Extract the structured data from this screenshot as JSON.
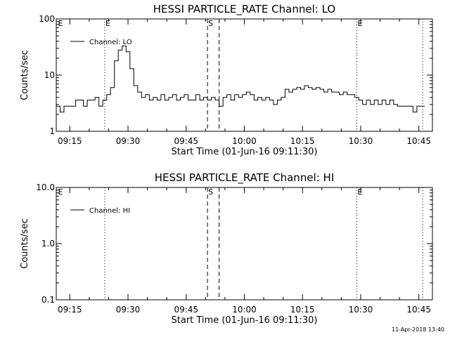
{
  "stamp": "11-Apr-2018 13:40",
  "chart_data": [
    {
      "type": "line",
      "title": "HESSI PARTICLE_RATE Channel: LO",
      "xlabel": "Start Time (01-Jun-16 09:11:30)",
      "ylabel": "Counts/sec",
      "yscale": "log",
      "xlim": [
        0,
        97
      ],
      "ylim": [
        1,
        100
      ],
      "yticks": [
        1,
        10,
        100
      ],
      "ytick_labels": [
        "1",
        "10",
        "100"
      ],
      "xticks": [
        3.5,
        18.5,
        33.5,
        48.5,
        63.5,
        78.5,
        93.5
      ],
      "xtick_labels": [
        "09:15",
        "09:30",
        "09:45",
        "10:00",
        "10:15",
        "10:30",
        "10:45"
      ],
      "x_unit": "minutes since start time",
      "legend": "top-left",
      "series": [
        {
          "name": "Channel: LO",
          "x": [
            0,
            1,
            2,
            3,
            4,
            5,
            6,
            7,
            8,
            9,
            10,
            11,
            12,
            13,
            14,
            15,
            16,
            17,
            18,
            19,
            20,
            21,
            22,
            23,
            24,
            25,
            26,
            27,
            28,
            29,
            30,
            31,
            32,
            33,
            34,
            35,
            36,
            37,
            38,
            39,
            40,
            41,
            42,
            43,
            44,
            45,
            46,
            47,
            48,
            49,
            50,
            51,
            52,
            53,
            54,
            55,
            56,
            57,
            58,
            59,
            60,
            61,
            62,
            63,
            64,
            65,
            66,
            67,
            68,
            69,
            70,
            71,
            72,
            73,
            74,
            75,
            76,
            77,
            78,
            79,
            80,
            81,
            82,
            83,
            84,
            85,
            86,
            87,
            88,
            89,
            90,
            91,
            92,
            93,
            94
          ],
          "y": [
            2.8,
            2.2,
            2.8,
            2.8,
            2.8,
            3.6,
            3.6,
            2.8,
            3.6,
            3.6,
            4.0,
            2.8,
            3.6,
            4.5,
            6.0,
            18.0,
            28.0,
            33.0,
            26.0,
            13.0,
            6.5,
            5.0,
            4.0,
            4.5,
            3.6,
            4.0,
            3.6,
            4.5,
            3.6,
            4.0,
            4.5,
            3.6,
            4.0,
            4.5,
            3.6,
            3.6,
            4.5,
            3.6,
            4.0,
            3.6,
            4.0,
            3.6,
            2.8,
            4.0,
            4.5,
            3.6,
            4.5,
            4.0,
            4.5,
            5.0,
            4.5,
            3.6,
            4.0,
            3.6,
            4.0,
            3.6,
            3.0,
            3.6,
            4.0,
            5.6,
            5.0,
            5.6,
            6.0,
            5.6,
            6.5,
            6.0,
            5.6,
            6.0,
            5.6,
            5.0,
            5.6,
            5.0,
            5.0,
            4.5,
            5.0,
            4.5,
            4.5,
            4.0,
            3.6,
            3.0,
            3.6,
            3.0,
            3.6,
            3.0,
            3.6,
            3.0,
            3.6,
            3.0,
            2.8,
            2.8,
            2.8,
            2.8,
            2.2,
            2.8,
            2.8
          ]
        }
      ],
      "markers": [
        {
          "x": 12.5,
          "style": "dotted",
          "label": "E"
        },
        {
          "x": 39.0,
          "style": "dashed",
          "label": "S"
        },
        {
          "x": 42.0,
          "style": "dashed",
          "label": ""
        },
        {
          "x": 77.5,
          "style": "dotted",
          "label": "E"
        },
        {
          "x": 94.5,
          "style": "dotted",
          "label": ""
        },
        {
          "x": 0.3,
          "style": "none",
          "label": "E"
        }
      ]
    },
    {
      "type": "line",
      "title": "HESSI PARTICLE_RATE Channel: HI",
      "xlabel": "Start Time (01-Jun-16 09:11:30)",
      "ylabel": "Counts/sec",
      "yscale": "log",
      "xlim": [
        0,
        97
      ],
      "ylim": [
        0.1,
        10
      ],
      "yticks": [
        0.1,
        1,
        10
      ],
      "ytick_labels": [
        "0.1",
        "1.0",
        "10.0"
      ],
      "xticks": [
        3.5,
        18.5,
        33.5,
        48.5,
        63.5,
        78.5,
        93.5
      ],
      "xtick_labels": [
        "09:15",
        "09:30",
        "09:45",
        "10:00",
        "10:15",
        "10:30",
        "10:45"
      ],
      "x_unit": "minutes since start time",
      "legend": "top-left",
      "series": [
        {
          "name": "Channel: HI",
          "x": [],
          "y": []
        }
      ],
      "markers": [
        {
          "x": 12.5,
          "style": "dotted",
          "label": ""
        },
        {
          "x": 39.0,
          "style": "dashed",
          "label": "S"
        },
        {
          "x": 42.0,
          "style": "dashed",
          "label": ""
        },
        {
          "x": 77.5,
          "style": "dotted",
          "label": "E"
        },
        {
          "x": 94.5,
          "style": "dotted",
          "label": ""
        },
        {
          "x": 0.3,
          "style": "none",
          "label": "E"
        }
      ]
    }
  ]
}
